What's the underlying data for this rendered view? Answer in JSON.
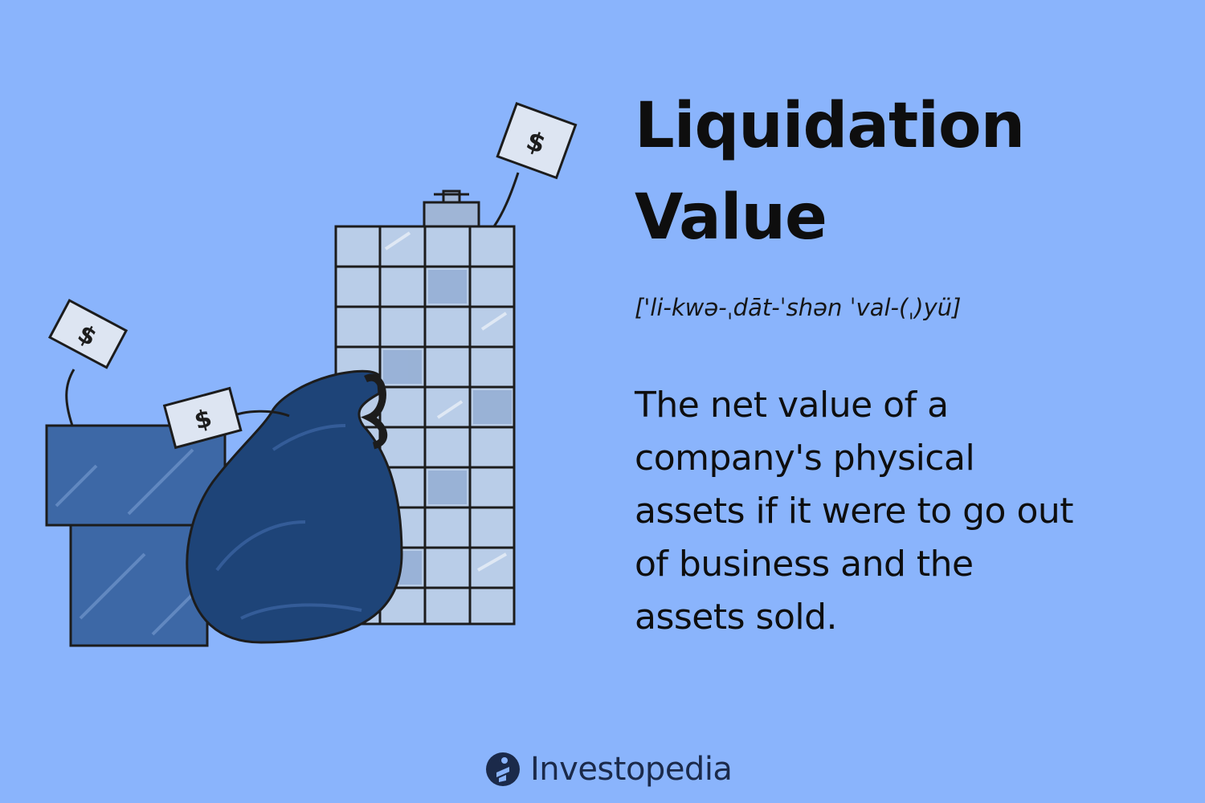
{
  "headline": {
    "line1": "Liquidation",
    "line2": "Value"
  },
  "pronunciation": "['li-kwə-ˌdāt-ˈshən ˈval-(ˌ)yü]",
  "definition": {
    "lines": [
      "The net value of a",
      "company's physical",
      "assets if it were to go out",
      "of business and the",
      "assets sold."
    ]
  },
  "brand": {
    "name": "Investopedia",
    "icon": "investopedia-logo-icon"
  },
  "illustration": {
    "sign_symbol": "$",
    "icons": [
      "office-tower-icon",
      "low-building-icon",
      "money-bag-icon",
      "price-tag-icon"
    ]
  },
  "colors": {
    "background": "#8ab4fc",
    "tower_light": "#b9cde8",
    "building_blue": "#3d68a6",
    "bag_navy": "#1e4478",
    "text": "#0e0e0e",
    "brand_navy": "#1b2a4a"
  }
}
